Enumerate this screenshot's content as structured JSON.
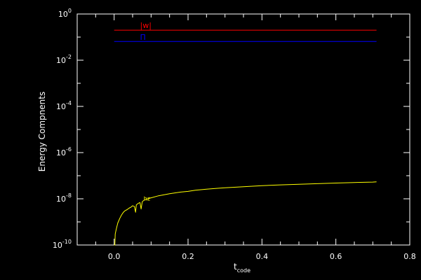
{
  "chart_data": {
    "type": "line",
    "title": "",
    "xlabel": "t",
    "xlabel_subscript": "code",
    "ylabel": "Energy Compnents",
    "xlim": [
      -0.1,
      0.8
    ],
    "ylim": [
      1e-10,
      1
    ],
    "yscale": "log",
    "grid": false,
    "background": "#000000",
    "axis_color": "#ffffff",
    "x_ticks": [
      {
        "value": 0.0,
        "label": "0.0"
      },
      {
        "value": 0.2,
        "label": "0.2"
      },
      {
        "value": 0.4,
        "label": "0.4"
      },
      {
        "value": 0.6,
        "label": "0.6"
      },
      {
        "value": 0.8,
        "label": "0.8"
      }
    ],
    "y_ticks": [
      {
        "value": 1e-10,
        "base": "10",
        "exp": "-10"
      },
      {
        "value": 1e-08,
        "base": "10",
        "exp": "-8"
      },
      {
        "value": 1e-06,
        "base": "10",
        "exp": "-6"
      },
      {
        "value": 0.0001,
        "base": "10",
        "exp": "-4"
      },
      {
        "value": 0.01,
        "base": "10",
        "exp": "-2"
      },
      {
        "value": 1,
        "base": "10",
        "exp": "0"
      }
    ],
    "series": [
      {
        "name": "|w|",
        "color": "#ff0000",
        "label_at": [
          0.07,
          0.25
        ],
        "points": [
          [
            0.0,
            0.2
          ],
          [
            0.71,
            0.2
          ]
        ]
      },
      {
        "name": "Π",
        "color": "#0000ff",
        "label_at": [
          0.07,
          0.075
        ],
        "points": [
          [
            0.0,
            0.065
          ],
          [
            0.71,
            0.065
          ]
        ]
      },
      {
        "name": "hz",
        "color": "#ffff00",
        "label_at": [
          0.08,
          8.5e-09
        ],
        "points": [
          [
            0.0,
            1e-10
          ],
          [
            0.002,
            1e-10
          ],
          [
            0.003,
            3e-10
          ],
          [
            0.006,
            5e-10
          ],
          [
            0.01,
            9e-10
          ],
          [
            0.015,
            1.4e-09
          ],
          [
            0.02,
            2e-09
          ],
          [
            0.025,
            2.6e-09
          ],
          [
            0.03,
            3.1e-09
          ],
          [
            0.035,
            3.4e-09
          ],
          [
            0.04,
            3.9e-09
          ],
          [
            0.045,
            4.3e-09
          ],
          [
            0.05,
            5e-09
          ],
          [
            0.055,
            4.6e-09
          ],
          [
            0.058,
            2.6e-09
          ],
          [
            0.06,
            5.5e-09
          ],
          [
            0.065,
            6.3e-09
          ],
          [
            0.07,
            6.9e-09
          ],
          [
            0.073,
            3.6e-09
          ],
          [
            0.076,
            7.4e-09
          ],
          [
            0.08,
            8.5e-09
          ],
          [
            0.085,
            9.2e-09
          ],
          [
            0.09,
            9.9e-09
          ],
          [
            0.1,
            1.1e-08
          ],
          [
            0.12,
            1.35e-08
          ],
          [
            0.15,
            1.65e-08
          ],
          [
            0.18,
            1.95e-08
          ],
          [
            0.2,
            2.1e-08
          ],
          [
            0.22,
            2.35e-08
          ],
          [
            0.25,
            2.6e-08
          ],
          [
            0.28,
            2.85e-08
          ],
          [
            0.3,
            3e-08
          ],
          [
            0.35,
            3.35e-08
          ],
          [
            0.4,
            3.7e-08
          ],
          [
            0.45,
            4e-08
          ],
          [
            0.5,
            4.25e-08
          ],
          [
            0.55,
            4.5e-08
          ],
          [
            0.6,
            4.8e-08
          ],
          [
            0.65,
            5.1e-08
          ],
          [
            0.7,
            5.3e-08
          ],
          [
            0.71,
            5.4e-08
          ]
        ]
      }
    ]
  }
}
